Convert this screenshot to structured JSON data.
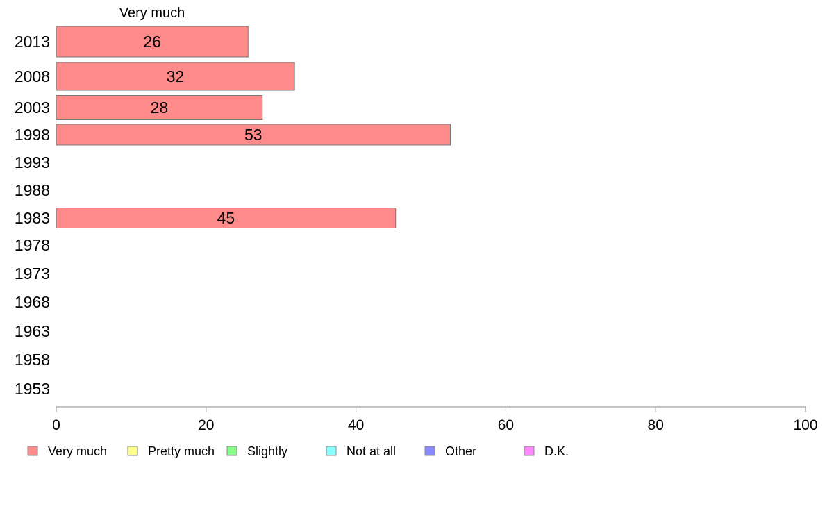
{
  "chart_data": {
    "type": "bar",
    "orientation": "horizontal",
    "series_title": "Very much",
    "categories": [
      "2013",
      "2008",
      "2003",
      "1998",
      "1993",
      "1988",
      "1983",
      "1978",
      "1973",
      "1968",
      "1963",
      "1958",
      "1953"
    ],
    "series": [
      {
        "name": "Very much",
        "color": "#ff8a8a",
        "values": [
          25.6,
          31.8,
          27.5,
          52.6,
          null,
          null,
          45.3,
          null,
          null,
          null,
          null,
          null,
          null
        ],
        "labels": [
          "26",
          "32",
          "28",
          "53",
          "",
          "",
          "45",
          "",
          "",
          "",
          "",
          "",
          ""
        ]
      },
      {
        "name": "Pretty much",
        "color": "#ffff88",
        "values": [
          null,
          null,
          null,
          null,
          null,
          null,
          null,
          null,
          null,
          null,
          null,
          null,
          null
        ]
      },
      {
        "name": "Slightly",
        "color": "#88ff88",
        "values": [
          null,
          null,
          null,
          null,
          null,
          null,
          null,
          null,
          null,
          null,
          null,
          null,
          null
        ]
      },
      {
        "name": "Not at all",
        "color": "#88ffff",
        "values": [
          null,
          null,
          null,
          null,
          null,
          null,
          null,
          null,
          null,
          null,
          null,
          null,
          null
        ]
      },
      {
        "name": "Other",
        "color": "#8888ff",
        "values": [
          null,
          null,
          null,
          null,
          null,
          null,
          null,
          null,
          null,
          null,
          null,
          null,
          null
        ]
      },
      {
        "name": "D.K.",
        "color": "#ff88ff",
        "values": [
          null,
          null,
          null,
          null,
          null,
          null,
          null,
          null,
          null,
          null,
          null,
          null,
          null
        ]
      }
    ],
    "xlim": [
      0,
      100
    ],
    "xticks": [
      0,
      20,
      40,
      60,
      80,
      100
    ],
    "grid": false,
    "legend_position": "bottom"
  }
}
